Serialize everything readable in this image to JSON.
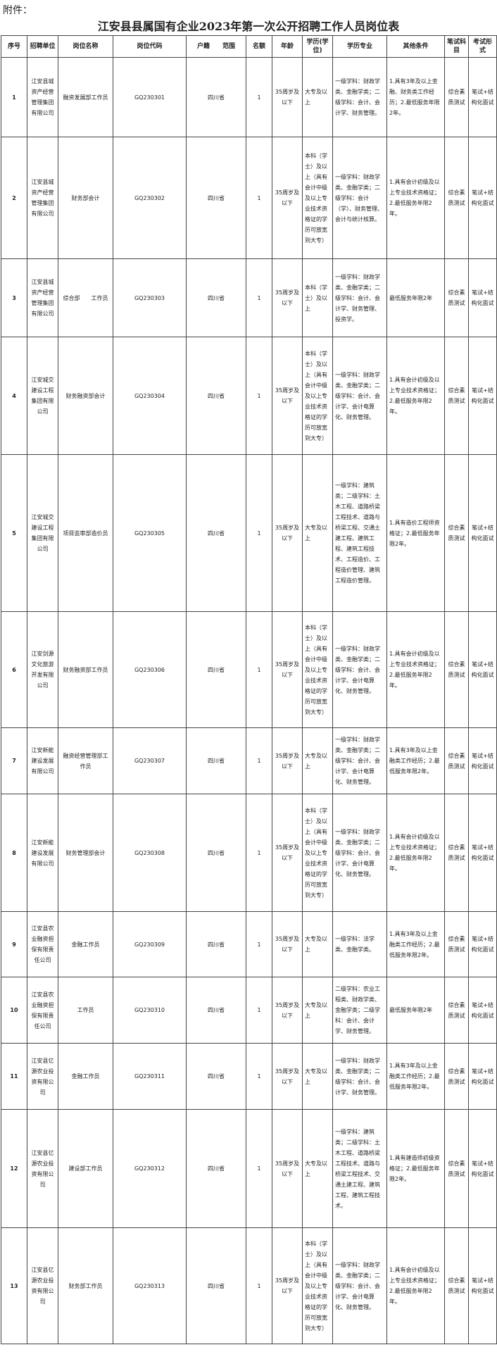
{
  "header": {
    "attachment": "附件：",
    "title": "江安县县属国有企业2023年第一次公开招聘工作人员岗位表"
  },
  "table": {
    "columns": [
      "序号",
      "招聘单位",
      "岗位名称",
      "岗位代码",
      "户籍　　范围",
      "名额",
      "年龄",
      "学历(学位)",
      "学历专业",
      "其他条件",
      "笔试科目",
      "考试形式"
    ],
    "rows": [
      [
        1,
        "江安县城资产经营管理集团有限公司",
        "融资发展部工作员",
        "GQ230301",
        "四川省",
        1,
        "35周岁及以下",
        "大专及以上",
        "一级学科：财政学类、金融学类；二级学科：会计、会计学、财务管理。",
        "1.具有3年及以上金融、财务类工作经历；2.最低服务年限2年。",
        "综合素质测试",
        "笔试+结构化面试"
      ],
      [
        2,
        "江安县城资产经营管理集团有限公司",
        "财务部会计",
        "GQ230302",
        "四川省",
        1,
        "35周岁及以下",
        "本科（学士）及以上（具有会计中级及以上专业技术资格证的学历可放宽到大专）",
        "一级学科：财政学类、金融学类；二级学科：会计（学）、财务管理、会计与统计核算。",
        "1.具有会计初级及以上专业技术资格证；2.最低服务年限2年。",
        "综合素质测试",
        "笔试+结构化面试"
      ],
      [
        3,
        "江安县城资产经营管理集团有限公司",
        "综合部　　工作员",
        "GQ230303",
        "四川省",
        1,
        "35周岁及以下",
        "本科（学士）及以上",
        "一级学科：财政学类、金融学类；二级学科：会计、会计学、财务管理、投资学。",
        "最低服务年限2年",
        "综合素质测试",
        "笔试+结构化面试"
      ],
      [
        4,
        "江安城交建设工程集团有限公司",
        "财务融资部会计",
        "GQ230304",
        "四川省",
        1,
        "35周岁及以下",
        "本科（学士）及以上（具有会计中级及以上专业技术资格证的学历可放宽到大专）",
        "一级学科：财政学类、金融学类；二级学科：会计、会计学、会计电算化、财务管理。",
        "1.具有会计初级及以上专业技术资格证；2.最低服务年限2年。",
        "综合素质测试",
        "笔试+结构化面试"
      ],
      [
        5,
        "江安城交建设工程集团有限公司",
        "项目监审部造价员",
        "GQ230305",
        "四川省",
        1,
        "35周岁及以下",
        "大专及以上",
        "一级学科：建筑类；二级学科：土木工程、道路桥梁工程技术、道路与桥梁工程、交通土建工程、建筑工程、建筑工程技术、工程造价、工程造价管理、建筑工程造价管理。",
        "1.具有造价工程师资格证；2.最低服务年限2年。",
        "综合素质测试",
        "笔试+结构化面试"
      ],
      [
        6,
        "江安剑源文化旅游开发有限公司",
        "财务融资部工作员",
        "GQ230306",
        "四川省",
        1,
        "35周岁及以下",
        "本科（学士）及以上（具有会计中级及以上专业技术资格证的学历可放宽到大专）",
        "一级学科：财政学类、金融学类；二级学科：会计、会计学、会计电算化、财务管理。",
        "1.具有会计初级及以上专业技术资格证；2.最低服务年限2年。",
        "综合素质测试",
        "笔试+结构化面试"
      ],
      [
        7,
        "江安新能建设发展有限公司",
        "融资经营管理部工作员",
        "GQ230307",
        "四川省",
        1,
        "35周岁及以下",
        "大专及以上",
        "一级学科：财政学类、金融学类；二级学科：会计、会计学、会计电算化、财务管理。",
        "1.具有3年及以上金融类工作经历；2.最低服务年限2年。",
        "综合素质测试",
        "笔试+结构化面试"
      ],
      [
        8,
        "江安新能建设发展有限公司",
        "财务管理部会计",
        "GQ230308",
        "四川省",
        1,
        "35周岁及以下",
        "本科（学士）及以上（具有会计中级及以上专业技术资格证的学历可放宽到大专）",
        "一级学科：财政学类、金融学类；二级学科：会计、会计学、会计电算化、财务管理。",
        "1.具有会计初级及以上专业技术资格证；2.最低服务年限2年。",
        "综合素质测试",
        "笔试+结构化面试"
      ],
      [
        9,
        "江安县农业融资担保有限责任公司",
        "金融工作员",
        "GQ230309",
        "四川省",
        1,
        "35周岁及以下",
        "大专及以上",
        "一级学科：法学类、金融学类。",
        "1.具有3年及以上金融类工作经历；2.最低服务年限2年。",
        "综合素质测试",
        "笔试+结构化面试"
      ],
      [
        10,
        "江安县农业融资担保有限责任公司",
        "工作员",
        "GQ230310",
        "四川省",
        1,
        "35周岁及以下",
        "大专及以上",
        "二级学科：农业工程类、财政学类、金融学类；二级学科：会计、会计学、财务管理。",
        "最低服务年限2年",
        "综合素质测试",
        "笔试+结构化面试"
      ],
      [
        11,
        "江安县亿源农业投资有限公司",
        "金融工作员",
        "GQ230311",
        "四川省",
        1,
        "35周岁及以下",
        "大专及以上",
        "一级学科：财政学类、金融学类；二级学科：会计、会计学、财务管理。",
        "1.具有3年及以上金融类工作经历；2.最低服务年限2年。",
        "综合素质测试",
        "笔试+结构化面试"
      ],
      [
        12,
        "江安县亿源农业投资有限公司",
        "建设部工作员",
        "GQ230312",
        "四川省",
        1,
        "35周岁及以下",
        "大专及以上",
        "一级学科：建筑类；二级学科：土木工程、道路桥梁工程技术、道路与桥梁工程技术、交通土建工程、建筑工程、建筑工程技术。",
        "1.具有建造师初级资格证；2.最低服务年限2年。",
        "综合素质测试",
        "笔试+结构化面试"
      ],
      [
        13,
        "江安县亿源农业投资有限公司",
        "财务部工作员",
        "GQ230313",
        "四川省",
        1,
        "35周岁及以下",
        "本科（学士）及以上（具有会计中级及以上专业技术资格证的学历可放宽到大专）",
        "一级学科：财政学类、金融学类；二级学科：会计、会计学、会计电算化、财务管理。",
        "1.具有会计初级及以上专业技术资格证；2.最低服务年限2年。",
        "综合素质测试",
        "笔试+结构化面试"
      ]
    ]
  }
}
